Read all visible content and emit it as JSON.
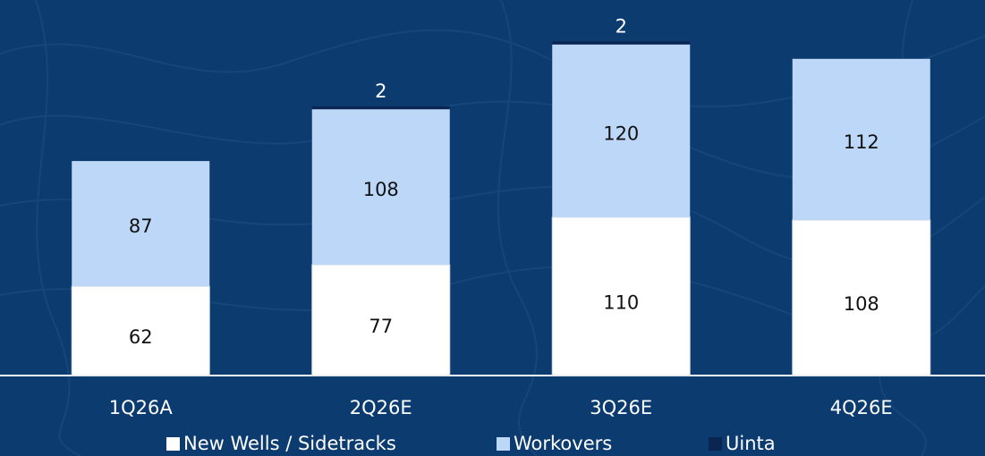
{
  "chart_data": {
    "type": "stacked-bar",
    "categories": [
      "1Q26A",
      "2Q26E",
      "3Q26E",
      "4Q26E"
    ],
    "series": [
      {
        "name": "New Wells / Sidetracks",
        "color": "#ffffff",
        "values": [
          62,
          77,
          110,
          108
        ]
      },
      {
        "name": "Workovers",
        "color": "#bdd7f8",
        "values": [
          87,
          108,
          120,
          112
        ]
      },
      {
        "name": "Uinta",
        "color": "#0a2552",
        "values": [
          null,
          2,
          2,
          null
        ]
      }
    ]
  }
}
